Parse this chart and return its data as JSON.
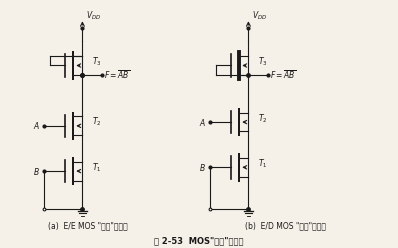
{
  "title": "图 2-53  MOS\"与非\"门电路",
  "subtitle_a": "(a)  E/E MOS \"与非\"门电路",
  "subtitle_b": "(b)  E/D MOS \"与非\"门电路",
  "bg_color": "#f5f0e8",
  "line_color": "#1a1a1a",
  "text_color": "#1a1a1a",
  "fig_width": 3.98,
  "fig_height": 2.48,
  "dpi": 100
}
